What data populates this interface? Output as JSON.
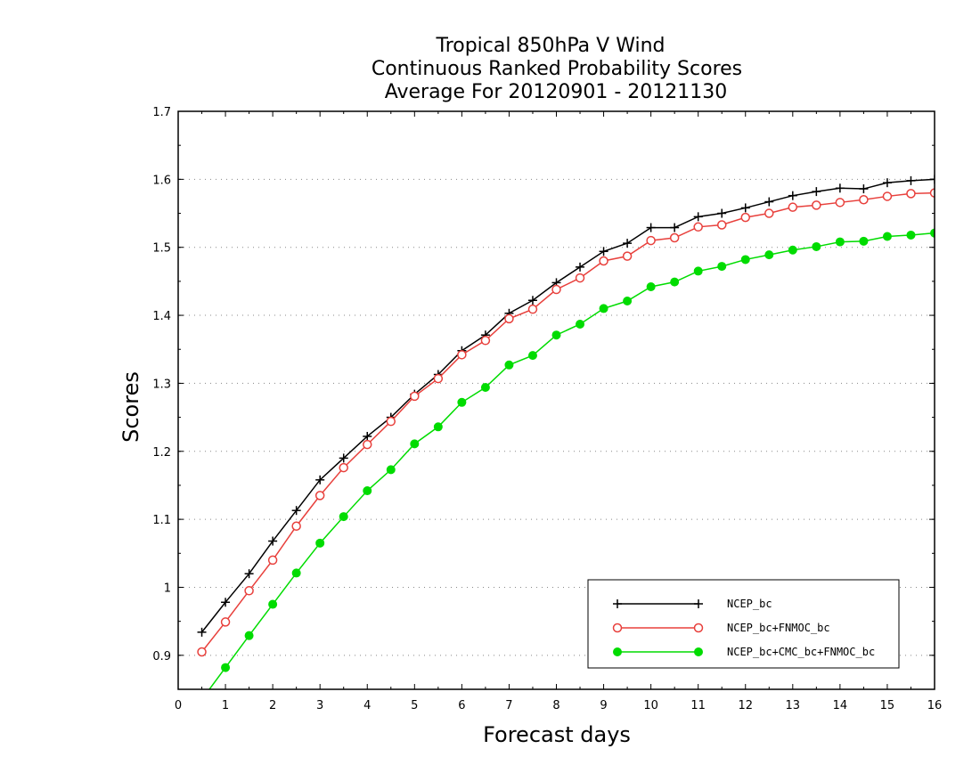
{
  "chart_data": {
    "type": "line",
    "title": [
      "Tropical 850hPa V Wind",
      "Continuous Ranked Probability Scores",
      "Average For 20120901 - 20121130"
    ],
    "xlabel": "Forecast days",
    "ylabel": "Scores",
    "xlim": [
      0,
      16
    ],
    "ylim": [
      0.85,
      1.7
    ],
    "xticks": [
      0,
      1,
      2,
      3,
      4,
      5,
      6,
      7,
      8,
      9,
      10,
      11,
      12,
      13,
      14,
      15,
      16
    ],
    "yticks": [
      0.9,
      1,
      1.1,
      1.2,
      1.3,
      1.4,
      1.5,
      1.6,
      1.7
    ],
    "ytick_labels": [
      "0.9",
      "1",
      "1.1",
      "1.2",
      "1.3",
      "1.4",
      "1.5",
      "1.6",
      "1.7"
    ],
    "grid": "horizontal dotted",
    "legend_position": "bottom-right",
    "x": [
      0.5,
      1,
      1.5,
      2,
      2.5,
      3,
      3.5,
      4,
      4.5,
      5,
      5.5,
      6,
      6.5,
      7,
      7.5,
      8,
      8.5,
      9,
      9.5,
      10,
      10.5,
      11,
      11.5,
      12,
      12.5,
      13,
      13.5,
      14,
      14.5,
      15,
      15.5,
      16
    ],
    "series": [
      {
        "name": "NCEP_bc",
        "color": "#000000",
        "marker": "plus",
        "values": [
          0.934,
          0.978,
          1.02,
          1.068,
          1.113,
          1.158,
          1.19,
          1.222,
          1.25,
          1.284,
          1.313,
          1.348,
          1.371,
          1.403,
          1.422,
          1.448,
          1.471,
          1.494,
          1.506,
          1.529,
          1.529,
          1.545,
          1.55,
          1.558,
          1.567,
          1.576,
          1.582,
          1.587,
          1.586,
          1.595,
          1.598,
          1.6
        ]
      },
      {
        "name": "NCEP_bc+FNMOC_bc",
        "color": "#e8403c",
        "marker": "open-circle",
        "values": [
          0.905,
          0.949,
          0.995,
          1.04,
          1.09,
          1.135,
          1.176,
          1.21,
          1.244,
          1.281,
          1.307,
          1.342,
          1.363,
          1.395,
          1.409,
          1.438,
          1.455,
          1.48,
          1.487,
          1.51,
          1.514,
          1.53,
          1.533,
          1.544,
          1.55,
          1.559,
          1.562,
          1.566,
          1.57,
          1.575,
          1.579,
          1.58
        ]
      },
      {
        "name": "NCEP_bc+CMC_bc+FNMOC_bc",
        "color": "#00dc00",
        "marker": "filled-circle",
        "values": [
          0.835,
          0.882,
          0.929,
          0.975,
          1.021,
          1.065,
          1.104,
          1.142,
          1.173,
          1.211,
          1.236,
          1.272,
          1.294,
          1.327,
          1.341,
          1.371,
          1.387,
          1.41,
          1.421,
          1.442,
          1.449,
          1.465,
          1.472,
          1.482,
          1.489,
          1.496,
          1.501,
          1.508,
          1.509,
          1.516,
          1.518,
          1.521
        ]
      }
    ]
  }
}
